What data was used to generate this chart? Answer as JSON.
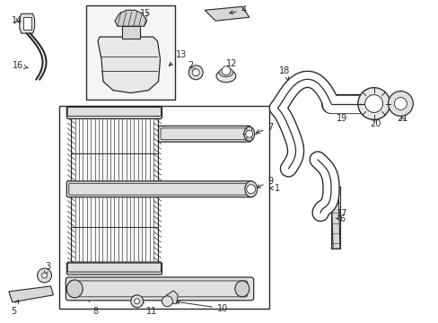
{
  "bg_color": "#ffffff",
  "lc": "#2a2a2a",
  "fig_width": 4.89,
  "fig_height": 3.6,
  "dpi": 100,
  "fs": 7.0
}
